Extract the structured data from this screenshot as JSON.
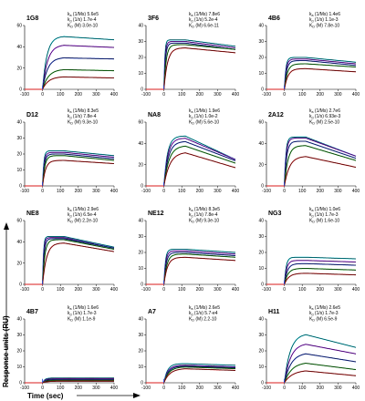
{
  "figure": {
    "ylabel": "Response units (RU)",
    "xlabel": "Time (sec)"
  },
  "chart_data": [
    {
      "type": "line",
      "title": "1G8",
      "xlim": [
        -100,
        400
      ],
      "ylim": [
        0,
        60
      ],
      "xticks": [
        "-100",
        "0",
        "100",
        "200",
        "300",
        "400"
      ],
      "yticks": [
        "0",
        "20",
        "40",
        "60"
      ],
      "kinetics": [
        {
          "label": "k",
          "sub": "a",
          "unit": "(1/Ms)",
          "value": "5.6e5"
        },
        {
          "label": "k",
          "sub": "d",
          "unit": "(1/s)",
          "value": "1.7e-4"
        },
        {
          "label": "K",
          "sub": "D",
          "unit": "(M)",
          "value": "3.0e-10"
        }
      ],
      "series": [
        {
          "color": "#00c8d8",
          "plateau": 50,
          "assoc_rate": 0.04,
          "dissoc_drop": 3
        },
        {
          "color": "#a020f0",
          "plateau": 42,
          "assoc_rate": 0.035,
          "dissoc_drop": 2
        },
        {
          "color": "#1f3fd0",
          "plateau": 30,
          "assoc_rate": 0.035,
          "dissoc_drop": 1
        },
        {
          "color": "#1aa01a",
          "plateau": 19,
          "assoc_rate": 0.03,
          "dissoc_drop": 1
        },
        {
          "color": "#d81b1b",
          "plateau": 12,
          "assoc_rate": 0.03,
          "dissoc_drop": 1
        }
      ]
    },
    {
      "type": "line",
      "title": "3F6",
      "xlim": [
        -100,
        400
      ],
      "ylim": [
        0,
        40
      ],
      "xticks": [
        "-100",
        "0",
        "100",
        "200",
        "300",
        "400"
      ],
      "yticks": [
        "0",
        "10",
        "20",
        "30",
        "40"
      ],
      "kinetics": [
        {
          "label": "k",
          "sub": "a",
          "unit": "(1/Ms)",
          "value": "7.8e6"
        },
        {
          "label": "k",
          "sub": "d",
          "unit": "(1/s)",
          "value": "5.2e-4"
        },
        {
          "label": "K",
          "sub": "D",
          "unit": "(M)",
          "value": "6.6e-11"
        }
      ],
      "series": [
        {
          "color": "#00c8d8",
          "plateau": 31,
          "assoc_rate": 0.2,
          "dissoc_drop": 4
        },
        {
          "color": "#a020f0",
          "plateau": 30,
          "assoc_rate": 0.15,
          "dissoc_drop": 4
        },
        {
          "color": "#1f3fd0",
          "plateau": 29,
          "assoc_rate": 0.12,
          "dissoc_drop": 4
        },
        {
          "color": "#1aa01a",
          "plateau": 28,
          "assoc_rate": 0.08,
          "dissoc_drop": 3
        },
        {
          "color": "#d81b1b",
          "plateau": 26,
          "assoc_rate": 0.05,
          "dissoc_drop": 3
        }
      ]
    },
    {
      "type": "line",
      "title": "4B6",
      "xlim": [
        -100,
        400
      ],
      "ylim": [
        0,
        40
      ],
      "xticks": [
        "-100",
        "0",
        "100",
        "200",
        "300",
        "400"
      ],
      "yticks": [
        "0",
        "10",
        "20",
        "30",
        "40"
      ],
      "kinetics": [
        {
          "label": "k",
          "sub": "a",
          "unit": "(1/Ms)",
          "value": "1.4e6"
        },
        {
          "label": "k",
          "sub": "d",
          "unit": "(1/s)",
          "value": "1.1e-3"
        },
        {
          "label": "K",
          "sub": "D",
          "unit": "(M)",
          "value": "7.8e-10"
        }
      ],
      "series": [
        {
          "color": "#00c8d8",
          "plateau": 20,
          "assoc_rate": 0.12,
          "dissoc_drop": 3
        },
        {
          "color": "#a020f0",
          "plateau": 19,
          "assoc_rate": 0.1,
          "dissoc_drop": 3
        },
        {
          "color": "#1f3fd0",
          "plateau": 18,
          "assoc_rate": 0.08,
          "dissoc_drop": 3
        },
        {
          "color": "#1aa01a",
          "plateau": 16,
          "assoc_rate": 0.06,
          "dissoc_drop": 2
        },
        {
          "color": "#d81b1b",
          "plateau": 13,
          "assoc_rate": 0.05,
          "dissoc_drop": 2
        }
      ]
    },
    {
      "type": "line",
      "title": "D12",
      "xlim": [
        -100,
        400
      ],
      "ylim": [
        0,
        40
      ],
      "xticks": [
        "-100",
        "0",
        "100",
        "200",
        "300",
        "400"
      ],
      "yticks": [
        "0",
        "10",
        "20",
        "30",
        "40"
      ],
      "kinetics": [
        {
          "label": "k",
          "sub": "a",
          "unit": "(1/Ms)",
          "value": "8.3e5"
        },
        {
          "label": "k",
          "sub": "d",
          "unit": "(1/s)",
          "value": "7.8e-4"
        },
        {
          "label": "K",
          "sub": "D",
          "unit": "(M)",
          "value": "9.3e-10"
        }
      ],
      "series": [
        {
          "color": "#00c8d8",
          "plateau": 22,
          "assoc_rate": 0.15,
          "dissoc_drop": 3
        },
        {
          "color": "#a020f0",
          "plateau": 21,
          "assoc_rate": 0.12,
          "dissoc_drop": 3
        },
        {
          "color": "#1f3fd0",
          "plateau": 20,
          "assoc_rate": 0.1,
          "dissoc_drop": 3
        },
        {
          "color": "#1aa01a",
          "plateau": 19,
          "assoc_rate": 0.08,
          "dissoc_drop": 3
        },
        {
          "color": "#d81b1b",
          "plateau": 16,
          "assoc_rate": 0.06,
          "dissoc_drop": 2
        }
      ]
    },
    {
      "type": "line",
      "title": "NA8",
      "xlim": [
        -100,
        400
      ],
      "ylim": [
        0,
        60
      ],
      "xticks": [
        "-100",
        "0",
        "100",
        "200",
        "300",
        "400"
      ],
      "yticks": [
        "0",
        "20",
        "40",
        "60"
      ],
      "kinetics": [
        {
          "label": "k",
          "sub": "a",
          "unit": "(1/Ms)",
          "value": "1.9e6"
        },
        {
          "label": "k",
          "sub": "d",
          "unit": "(1/s)",
          "value": "1.0e-2"
        },
        {
          "label": "K",
          "sub": "D",
          "unit": "(M)",
          "value": "5.6e-10"
        }
      ],
      "series": [
        {
          "color": "#00c8d8",
          "plateau": 47,
          "assoc_rate": 0.05,
          "dissoc_drop": 22
        },
        {
          "color": "#a020f0",
          "plateau": 45,
          "assoc_rate": 0.045,
          "dissoc_drop": 20
        },
        {
          "color": "#1f3fd0",
          "plateau": 42,
          "assoc_rate": 0.04,
          "dissoc_drop": 18
        },
        {
          "color": "#1aa01a",
          "plateau": 38,
          "assoc_rate": 0.035,
          "dissoc_drop": 16
        },
        {
          "color": "#d81b1b",
          "plateau": 32,
          "assoc_rate": 0.03,
          "dissoc_drop": 14
        }
      ]
    },
    {
      "type": "line",
      "title": "2A12",
      "xlim": [
        -100,
        400
      ],
      "ylim": [
        0,
        60
      ],
      "xticks": [
        "-100",
        "0",
        "100",
        "200",
        "300",
        "400"
      ],
      "yticks": [
        "0",
        "20",
        "40",
        "60"
      ],
      "kinetics": [
        {
          "label": "k",
          "sub": "a",
          "unit": "(1/Ms)",
          "value": "2.7e6"
        },
        {
          "label": "k",
          "sub": "d",
          "unit": "(1/s)",
          "value": "6.93e-3"
        },
        {
          "label": "K",
          "sub": "D",
          "unit": "(M)",
          "value": "2.5e-10"
        }
      ],
      "series": [
        {
          "color": "#00c8d8",
          "plateau": 46,
          "assoc_rate": 0.12,
          "dissoc_drop": 18
        },
        {
          "color": "#a020f0",
          "plateau": 45,
          "assoc_rate": 0.1,
          "dissoc_drop": 17
        },
        {
          "color": "#1f3fd0",
          "plateau": 42,
          "assoc_rate": 0.08,
          "dissoc_drop": 16
        },
        {
          "color": "#1aa01a",
          "plateau": 38,
          "assoc_rate": 0.05,
          "dissoc_drop": 14
        },
        {
          "color": "#d81b1b",
          "plateau": 28,
          "assoc_rate": 0.035,
          "dissoc_drop": 10
        }
      ]
    },
    {
      "type": "line",
      "title": "NE8",
      "xlim": [
        -100,
        400
      ],
      "ylim": [
        0,
        60
      ],
      "xticks": [
        "-100",
        "0",
        "100",
        "200",
        "300",
        "400"
      ],
      "yticks": [
        "0",
        "20",
        "40",
        "60"
      ],
      "kinetics": [
        {
          "label": "k",
          "sub": "a",
          "unit": "(1/Ms)",
          "value": "2.9e6"
        },
        {
          "label": "k",
          "sub": "d",
          "unit": "(1/s)",
          "value": "6.5e-4"
        },
        {
          "label": "K",
          "sub": "D",
          "unit": "(M)",
          "value": "2.2e-10"
        }
      ],
      "series": [
        {
          "color": "#00c8d8",
          "plateau": 45,
          "assoc_rate": 0.2,
          "dissoc_drop": 10
        },
        {
          "color": "#a020f0",
          "plateau": 44,
          "assoc_rate": 0.16,
          "dissoc_drop": 10
        },
        {
          "color": "#1f3fd0",
          "plateau": 43,
          "assoc_rate": 0.12,
          "dissoc_drop": 9
        },
        {
          "color": "#1aa01a",
          "plateau": 42,
          "assoc_rate": 0.08,
          "dissoc_drop": 9
        },
        {
          "color": "#d81b1b",
          "plateau": 39,
          "assoc_rate": 0.045,
          "dissoc_drop": 8
        }
      ]
    },
    {
      "type": "line",
      "title": "NE12",
      "xlim": [
        -100,
        400
      ],
      "ylim": [
        0,
        40
      ],
      "xticks": [
        "-100",
        "0",
        "100",
        "200",
        "300",
        "400"
      ],
      "yticks": [
        "0",
        "10",
        "20",
        "30",
        "40"
      ],
      "kinetics": [
        {
          "label": "k",
          "sub": "a",
          "unit": "(1/Ms)",
          "value": "8.3e5"
        },
        {
          "label": "k",
          "sub": "d",
          "unit": "(1/s)",
          "value": "7.8e-4"
        },
        {
          "label": "K",
          "sub": "D",
          "unit": "(M)",
          "value": "9.3e-10"
        }
      ],
      "series": [
        {
          "color": "#00c8d8",
          "plateau": 22,
          "assoc_rate": 0.12,
          "dissoc_drop": 2
        },
        {
          "color": "#a020f0",
          "plateau": 21,
          "assoc_rate": 0.1,
          "dissoc_drop": 2
        },
        {
          "color": "#1f3fd0",
          "plateau": 20,
          "assoc_rate": 0.08,
          "dissoc_drop": 2
        },
        {
          "color": "#1aa01a",
          "plateau": 19,
          "assoc_rate": 0.06,
          "dissoc_drop": 2
        },
        {
          "color": "#d81b1b",
          "plateau": 17,
          "assoc_rate": 0.05,
          "dissoc_drop": 2
        }
      ]
    },
    {
      "type": "line",
      "title": "NG3",
      "xlim": [
        -100,
        400
      ],
      "ylim": [
        0,
        40
      ],
      "xticks": [
        "-100",
        "0",
        "100",
        "200",
        "300",
        "400"
      ],
      "yticks": [
        "0",
        "10",
        "20",
        "30",
        "40"
      ],
      "kinetics": [
        {
          "label": "k",
          "sub": "a",
          "unit": "(1/Ms)",
          "value": "1.0e6"
        },
        {
          "label": "k",
          "sub": "d",
          "unit": "(1/s)",
          "value": "1.7e-3"
        },
        {
          "label": "K",
          "sub": "D",
          "unit": "(M)",
          "value": "1.6e-10"
        }
      ],
      "series": [
        {
          "color": "#00c8d8",
          "plateau": 17,
          "assoc_rate": 0.1,
          "dissoc_drop": 1
        },
        {
          "color": "#a020f0",
          "plateau": 15,
          "assoc_rate": 0.08,
          "dissoc_drop": 1
        },
        {
          "color": "#1f3fd0",
          "plateau": 13,
          "assoc_rate": 0.06,
          "dissoc_drop": 1
        },
        {
          "color": "#1aa01a",
          "plateau": 10,
          "assoc_rate": 0.05,
          "dissoc_drop": 1
        },
        {
          "color": "#d81b1b",
          "plateau": 7,
          "assoc_rate": 0.04,
          "dissoc_drop": 1
        }
      ]
    },
    {
      "type": "line",
      "title": "4B7",
      "xlim": [
        -100,
        400
      ],
      "ylim": [
        0,
        40
      ],
      "xticks": [
        "-100",
        "0",
        "100",
        "200",
        "300",
        "400"
      ],
      "yticks": [
        "0",
        "10",
        "20",
        "30",
        "40"
      ],
      "kinetics": [
        {
          "label": "k",
          "sub": "a",
          "unit": "(1/Ms)",
          "value": "1.6e6"
        },
        {
          "label": "k",
          "sub": "d",
          "unit": "(1/s)",
          "value": "1.7e-3"
        },
        {
          "label": "K",
          "sub": "D",
          "unit": "(M)",
          "value": "1.1e-9"
        }
      ],
      "series": [
        {
          "color": "#00c8d8",
          "plateau": 3,
          "assoc_rate": 0.08,
          "dissoc_drop": 0
        },
        {
          "color": "#a020f0",
          "plateau": 2.5,
          "assoc_rate": 0.07,
          "dissoc_drop": 0
        },
        {
          "color": "#1f3fd0",
          "plateau": 2,
          "assoc_rate": 0.06,
          "dissoc_drop": 0
        },
        {
          "color": "#1aa01a",
          "plateau": 1.5,
          "assoc_rate": 0.05,
          "dissoc_drop": 0
        },
        {
          "color": "#d81b1b",
          "plateau": 1,
          "assoc_rate": 0.04,
          "dissoc_drop": 0
        }
      ]
    },
    {
      "type": "line",
      "title": "A7",
      "xlim": [
        -100,
        400
      ],
      "ylim": [
        0,
        40
      ],
      "xticks": [
        "-100",
        "0",
        "100",
        "200",
        "300",
        "400"
      ],
      "yticks": [
        "0",
        "10",
        "20",
        "30",
        "40"
      ],
      "kinetics": [
        {
          "label": "k",
          "sub": "a",
          "unit": "(1/Ms)",
          "value": "2.6e5"
        },
        {
          "label": "k",
          "sub": "d",
          "unit": "(1/s)",
          "value": "5.7-e4"
        },
        {
          "label": "K",
          "sub": "D",
          "unit": "(M)",
          "value": "2.2-10"
        }
      ],
      "series": [
        {
          "color": "#00c8d8",
          "plateau": 12,
          "assoc_rate": 0.05,
          "dissoc_drop": 1
        },
        {
          "color": "#a020f0",
          "plateau": 11,
          "assoc_rate": 0.045,
          "dissoc_drop": 1
        },
        {
          "color": "#1f3fd0",
          "plateau": 10.5,
          "assoc_rate": 0.04,
          "dissoc_drop": 1
        },
        {
          "color": "#1aa01a",
          "plateau": 10,
          "assoc_rate": 0.035,
          "dissoc_drop": 1
        },
        {
          "color": "#d81b1b",
          "plateau": 9,
          "assoc_rate": 0.03,
          "dissoc_drop": 1
        }
      ]
    },
    {
      "type": "line",
      "title": "H11",
      "xlim": [
        -100,
        400
      ],
      "ylim": [
        0,
        40
      ],
      "xticks": [
        "-100",
        "0",
        "100",
        "200",
        "300",
        "400"
      ],
      "yticks": [
        "0",
        "10",
        "20",
        "30",
        "40"
      ],
      "kinetics": [
        {
          "label": "k",
          "sub": "a",
          "unit": "(1/Ms)",
          "value": "2.6e5"
        },
        {
          "label": "k",
          "sub": "d",
          "unit": "(1/s)",
          "value": "1.7e-3"
        },
        {
          "label": "K",
          "sub": "D",
          "unit": "(M)",
          "value": "6.5e-9"
        }
      ],
      "series": [
        {
          "color": "#00c8d8",
          "plateau": 31,
          "assoc_rate": 0.03,
          "dissoc_drop": 8
        },
        {
          "color": "#a020f0",
          "plateau": 25,
          "assoc_rate": 0.028,
          "dissoc_drop": 6
        },
        {
          "color": "#1f3fd0",
          "plateau": 19,
          "assoc_rate": 0.026,
          "dissoc_drop": 5
        },
        {
          "color": "#1aa01a",
          "plateau": 13,
          "assoc_rate": 0.024,
          "dissoc_drop": 4
        },
        {
          "color": "#d81b1b",
          "plateau": 8,
          "assoc_rate": 0.022,
          "dissoc_drop": 3
        }
      ]
    }
  ]
}
